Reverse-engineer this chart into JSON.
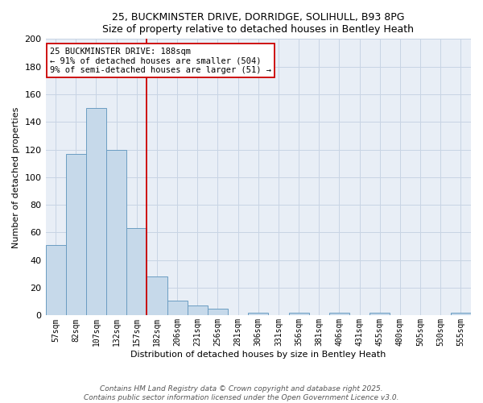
{
  "title1": "25, BUCKMINSTER DRIVE, DORRIDGE, SOLIHULL, B93 8PG",
  "title2": "Size of property relative to detached houses in Bentley Heath",
  "xlabel": "Distribution of detached houses by size in Bentley Heath",
  "ylabel": "Number of detached properties",
  "categories": [
    "57sqm",
    "82sqm",
    "107sqm",
    "132sqm",
    "157sqm",
    "182sqm",
    "206sqm",
    "231sqm",
    "256sqm",
    "281sqm",
    "306sqm",
    "331sqm",
    "356sqm",
    "381sqm",
    "406sqm",
    "431sqm",
    "455sqm",
    "480sqm",
    "505sqm",
    "530sqm",
    "555sqm"
  ],
  "values": [
    51,
    117,
    150,
    120,
    63,
    28,
    11,
    7,
    5,
    0,
    2,
    0,
    2,
    0,
    2,
    0,
    2,
    0,
    0,
    0,
    2
  ],
  "bar_color": "#c6d9ea",
  "bar_edge_color": "#6b9dc2",
  "vline_x": 4.5,
  "vline_color": "#cc0000",
  "annotation_box_edge": "#cc0000",
  "marker_label_line1": "25 BUCKMINSTER DRIVE: 188sqm",
  "marker_label_line2": "← 91% of detached houses are smaller (504)",
  "marker_label_line3": "9% of semi-detached houses are larger (51) →",
  "grid_color": "#c8d4e4",
  "background_color": "#e8eef6",
  "footer1": "Contains HM Land Registry data © Crown copyright and database right 2025.",
  "footer2": "Contains public sector information licensed under the Open Government Licence v3.0.",
  "ylim": [
    0,
    200
  ],
  "yticks": [
    0,
    20,
    40,
    60,
    80,
    100,
    120,
    140,
    160,
    180,
    200
  ]
}
